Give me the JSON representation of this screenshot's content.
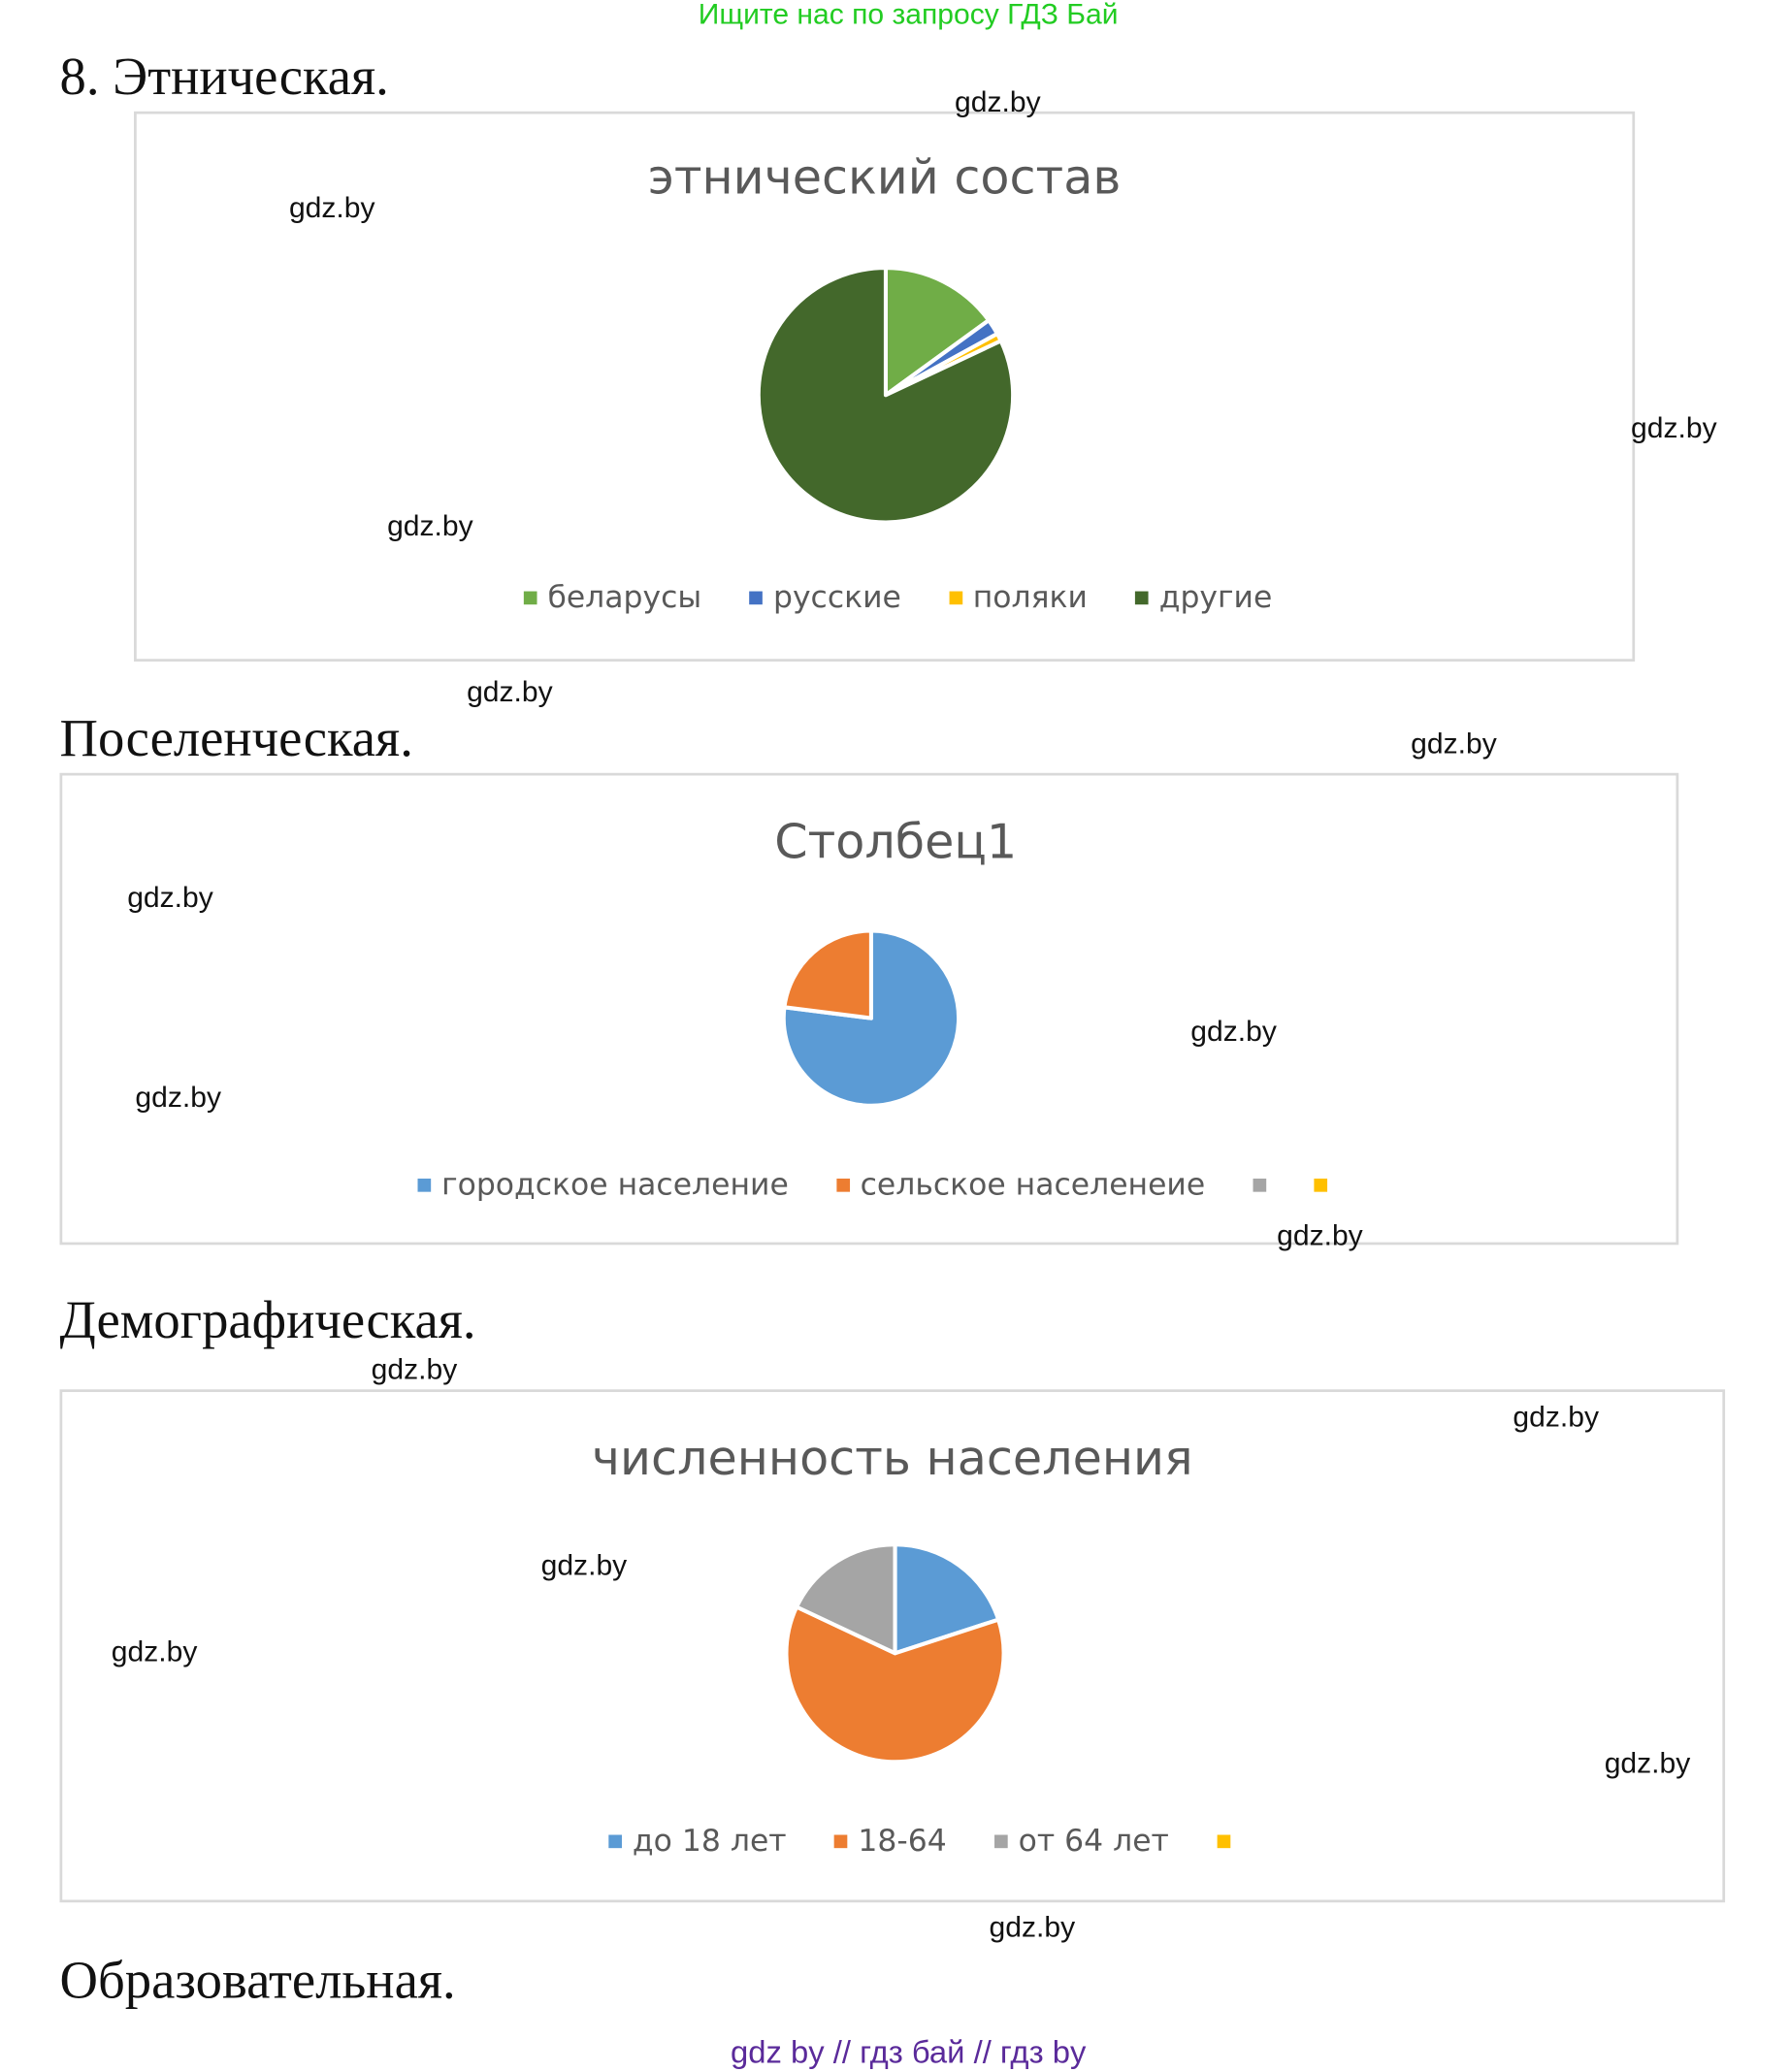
{
  "banner": "Ищите нас по запросу ГДЗ Бай",
  "watermark": "gdz.by",
  "footer": "gdz by  //  гдз бай  //  гдз by",
  "sections": [
    {
      "heading": "8.  Этническая."
    },
    {
      "heading": "Поселенческая."
    },
    {
      "heading": "Демографическая."
    },
    {
      "heading": "Образовательная."
    }
  ],
  "chart_data": [
    {
      "type": "pie",
      "title": "этнический состав",
      "categories": [
        "беларусы",
        "русские",
        "поляки",
        "другие"
      ],
      "values": [
        15,
        2,
        1,
        82
      ],
      "colors": [
        "#70ad47",
        "#4472c4",
        "#ffc000",
        "#43682b"
      ],
      "legend": "bottom"
    },
    {
      "type": "pie",
      "title": "Столбец1",
      "categories": [
        "городское население",
        "сельское населенеие",
        "",
        ""
      ],
      "values": [
        77,
        23,
        0,
        0
      ],
      "colors": [
        "#5b9bd5",
        "#ed7d31",
        "#a5a5a5",
        "#ffc000"
      ],
      "legend": "bottom"
    },
    {
      "type": "pie",
      "title": "численность населения",
      "categories": [
        "до 18 лет",
        "18-64",
        "от 64 лет",
        ""
      ],
      "values": [
        20,
        62,
        18,
        0
      ],
      "colors": [
        "#5b9bd5",
        "#ed7d31",
        "#a5a5a5",
        "#ffc000"
      ],
      "legend": "bottom"
    }
  ]
}
